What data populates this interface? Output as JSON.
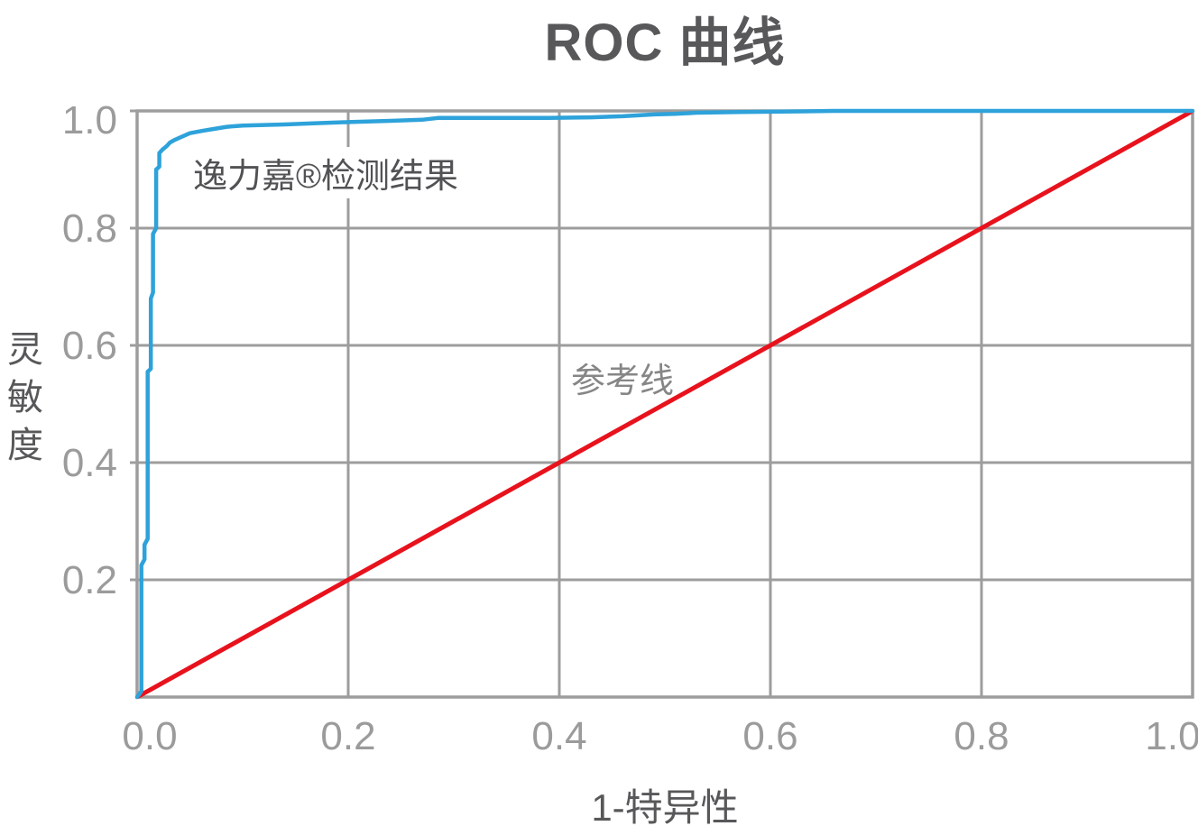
{
  "title": "ROC 曲线",
  "axes": {
    "x_label": "1-特异性",
    "y_label": "灵敏度",
    "x_ticks": [
      0.0,
      0.2,
      0.4,
      0.6,
      0.8,
      1.0
    ],
    "x_tick_labels": [
      "0.0",
      "0.2",
      "0.4",
      "0.6",
      "0.8",
      "1.0"
    ],
    "y_ticks": [
      0.2,
      0.4,
      0.6,
      0.8,
      1.0
    ],
    "y_tick_labels": [
      "0.2",
      "0.4",
      "0.6",
      "0.8",
      "1.0"
    ],
    "xlim": [
      0,
      1
    ],
    "ylim": [
      0,
      1
    ]
  },
  "annotations": {
    "series_label": "逸力嘉®检测结果",
    "reference_label": "参考线"
  },
  "colors": {
    "roc_line": "#2ea2da",
    "reference_line": "#e8121d",
    "grid": "#9d9d9d",
    "frame": "#9d9d9d",
    "tick_text": "#9b9b9b",
    "label_text": "#58585a",
    "annotation_text": "#525255",
    "reference_label_text": "#868686",
    "background": "#ffffff"
  },
  "chart_data": {
    "type": "line",
    "title": "ROC 曲线",
    "xlabel": "1-特异性",
    "ylabel": "灵敏度",
    "xlim": [
      0,
      1
    ],
    "ylim": [
      0,
      1
    ],
    "grid": true,
    "legend_position": "none",
    "series": [
      {
        "name": "逸力嘉®检测结果",
        "color": "#2ea2da",
        "points": [
          [
            0.0,
            0.0
          ],
          [
            0.004,
            0.01
          ],
          [
            0.004,
            0.225
          ],
          [
            0.007,
            0.235
          ],
          [
            0.007,
            0.26
          ],
          [
            0.01,
            0.27
          ],
          [
            0.01,
            0.555
          ],
          [
            0.013,
            0.56
          ],
          [
            0.013,
            0.68
          ],
          [
            0.015,
            0.69
          ],
          [
            0.015,
            0.79
          ],
          [
            0.018,
            0.8
          ],
          [
            0.018,
            0.9
          ],
          [
            0.021,
            0.905
          ],
          [
            0.021,
            0.928
          ],
          [
            0.024,
            0.934
          ],
          [
            0.028,
            0.94
          ],
          [
            0.031,
            0.946
          ],
          [
            0.036,
            0.951
          ],
          [
            0.041,
            0.955
          ],
          [
            0.05,
            0.962
          ],
          [
            0.062,
            0.966
          ],
          [
            0.072,
            0.969
          ],
          [
            0.085,
            0.973
          ],
          [
            0.1,
            0.975
          ],
          [
            0.14,
            0.977
          ],
          [
            0.17,
            0.979
          ],
          [
            0.2,
            0.981
          ],
          [
            0.24,
            0.983
          ],
          [
            0.27,
            0.985
          ],
          [
            0.285,
            0.988
          ],
          [
            0.39,
            0.988
          ],
          [
            0.43,
            0.989
          ],
          [
            0.46,
            0.991
          ],
          [
            0.49,
            0.994
          ],
          [
            0.51,
            0.995
          ],
          [
            0.53,
            0.997
          ],
          [
            0.57,
            0.998
          ],
          [
            0.62,
            0.999
          ],
          [
            0.66,
            1.0
          ],
          [
            1.0,
            1.0
          ]
        ]
      },
      {
        "name": "参考线",
        "color": "#e8121d",
        "points": [
          [
            0,
            0
          ],
          [
            1,
            1
          ]
        ]
      }
    ]
  }
}
